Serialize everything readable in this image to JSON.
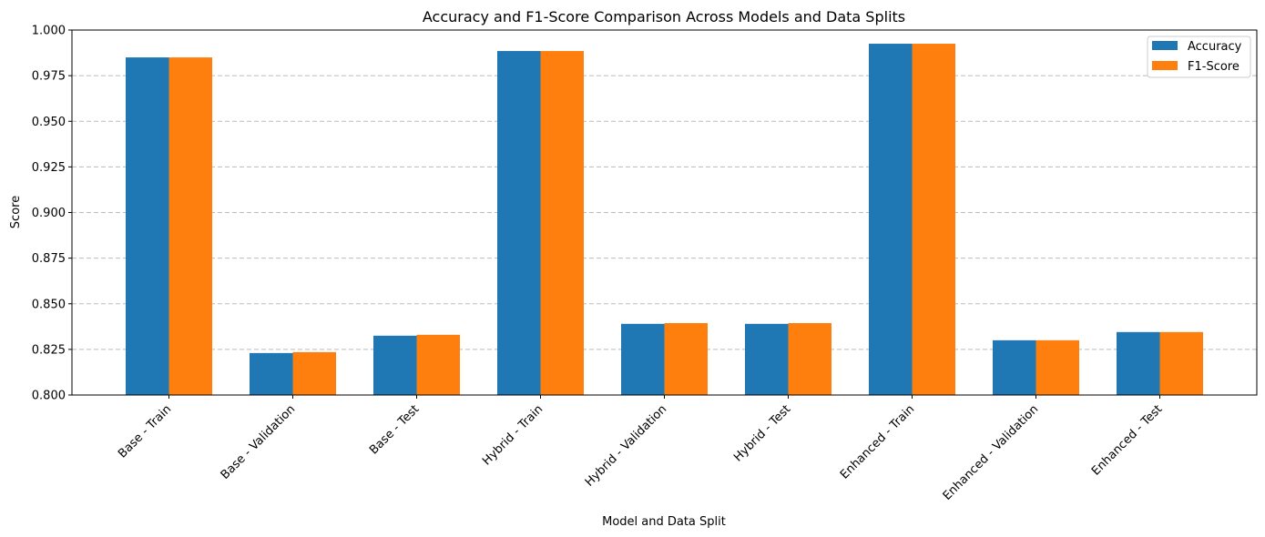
{
  "chart_data": {
    "type": "bar",
    "title": "Accuracy and F1-Score Comparison Across Models and Data Splits",
    "xlabel": "Model and Data Split",
    "ylabel": "Score",
    "ylim": [
      0.8,
      1.0
    ],
    "yticks": [
      "0.800",
      "0.825",
      "0.850",
      "0.875",
      "0.900",
      "0.925",
      "0.950",
      "0.975",
      "1.000"
    ],
    "grid": "y, dashed",
    "legend_position": "top-right",
    "categories": [
      "Base - Train",
      "Base - Validation",
      "Base - Test",
      "Hybrid - Train",
      "Hybrid - Validation",
      "Hybrid - Test",
      "Enhanced - Train",
      "Enhanced - Validation",
      "Enhanced - Test"
    ],
    "series": [
      {
        "name": "Accuracy",
        "color": "#1f77b4",
        "values": [
          0.985,
          0.823,
          0.8325,
          0.9885,
          0.839,
          0.839,
          0.9925,
          0.83,
          0.8345
        ]
      },
      {
        "name": "F1-Score",
        "color": "#ff7f0e",
        "values": [
          0.985,
          0.8235,
          0.833,
          0.9885,
          0.8394,
          0.8394,
          0.9925,
          0.83,
          0.8345
        ]
      }
    ]
  }
}
